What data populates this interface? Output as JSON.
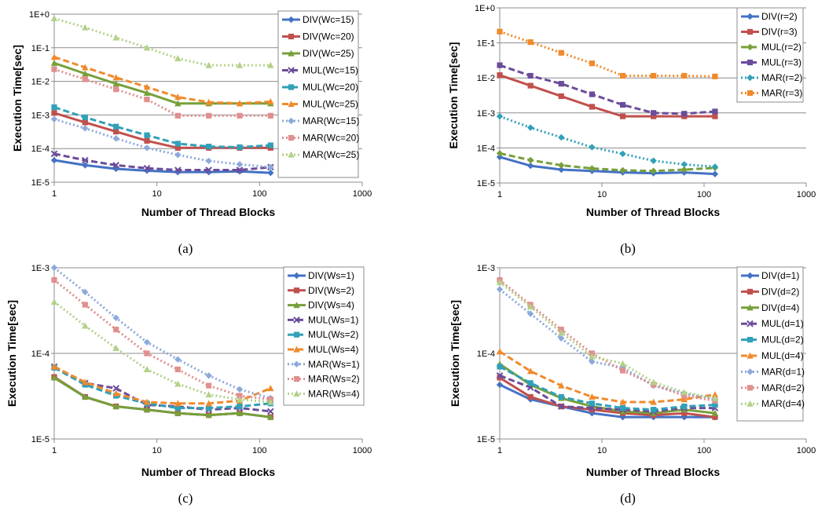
{
  "chart_data": [
    {
      "type": "line",
      "panel": "(a)",
      "xlabel": "Number of Thread Blocks",
      "ylabel": "Execution Time[sec]",
      "xscale": "log",
      "yscale": "log",
      "xlim": [
        1,
        1000
      ],
      "ylim": [
        1e-05,
        1
      ],
      "xticks": [
        1,
        10,
        100,
        1000
      ],
      "xtick_labels": [
        "1",
        "10",
        "100",
        "1000"
      ],
      "yticks": [
        1e-05,
        0.0001,
        0.001,
        0.01,
        0.1,
        1
      ],
      "ytick_labels": [
        "1E-5",
        "1E-4",
        "1E-3",
        "1E-2",
        "1E-1",
        "1E+0"
      ],
      "grid": "horizontal",
      "legend": "right",
      "x": [
        1,
        2,
        4,
        8,
        16,
        32,
        64,
        128
      ],
      "series": [
        {
          "name": "DIV(Wc=15)",
          "color": "#4472C4",
          "marker": "diamond",
          "dash": "solid",
          "values": [
            4.5e-05,
            3.2e-05,
            2.5e-05,
            2.2e-05,
            2e-05,
            2e-05,
            2.1e-05,
            1.9e-05
          ]
        },
        {
          "name": "DIV(Wc=20)",
          "color": "#C0504D",
          "marker": "square",
          "dash": "solid",
          "values": [
            0.00115,
            0.0006,
            0.00032,
            0.00017,
            0.000105,
            0.000105,
            0.000105,
            0.000105
          ]
        },
        {
          "name": "DIV(Wc=25)",
          "color": "#77A03A",
          "marker": "triangle",
          "dash": "solid",
          "values": [
            0.035,
            0.017,
            0.0085,
            0.0045,
            0.0022,
            0.0022,
            0.0022,
            0.0022
          ]
        },
        {
          "name": "MUL(Wc=15)",
          "color": "#6B4C9A",
          "marker": "x",
          "dash": "dash",
          "values": [
            7e-05,
            4.5e-05,
            3.2e-05,
            2.6e-05,
            2.3e-05,
            2.3e-05,
            2.3e-05,
            2.8e-05
          ]
        },
        {
          "name": "MUL(Wc=20)",
          "color": "#31A0B8",
          "marker": "square",
          "dash": "dash",
          "values": [
            0.0017,
            0.00085,
            0.00045,
            0.00025,
            0.00014,
            0.000115,
            0.00011,
            0.000125
          ]
        },
        {
          "name": "MUL(Wc=25)",
          "color": "#F08A2C",
          "marker": "triangle",
          "dash": "dash",
          "values": [
            0.053,
            0.026,
            0.013,
            0.0068,
            0.0034,
            0.0024,
            0.0022,
            0.0025
          ]
        },
        {
          "name": "MAR(Wc=15)",
          "color": "#8DA9DB",
          "marker": "diamond",
          "dash": "dot",
          "values": [
            0.00075,
            0.0004,
            0.0002,
            0.000105,
            6.5e-05,
            4.3e-05,
            3.4e-05,
            2.8e-05
          ]
        },
        {
          "name": "MAR(Wc=20)",
          "color": "#E0908F",
          "marker": "square",
          "dash": "dot",
          "values": [
            0.023,
            0.0115,
            0.0058,
            0.0029,
            0.00095,
            0.00095,
            0.00095,
            0.00095
          ]
        },
        {
          "name": "MAR(Wc=25)",
          "color": "#B3D18A",
          "marker": "triangle",
          "dash": "dot",
          "values": [
            0.75,
            0.4,
            0.2,
            0.1,
            0.048,
            0.03,
            0.03,
            0.03
          ]
        }
      ]
    },
    {
      "type": "line",
      "panel": "(b)",
      "xlabel": "Number of Thread Blocks",
      "ylabel": "Execution Time[sec]",
      "xscale": "log",
      "yscale": "log",
      "xlim": [
        1,
        1000
      ],
      "ylim": [
        1e-05,
        1
      ],
      "xticks": [
        1,
        10,
        100,
        1000
      ],
      "xtick_labels": [
        "1",
        "10",
        "100",
        "1000"
      ],
      "yticks": [
        1e-05,
        0.0001,
        0.001,
        0.01,
        0.1,
        1
      ],
      "ytick_labels": [
        "1E-5",
        "1E-4",
        "1E-3",
        "1E-2",
        "1E-1",
        "1E+0"
      ],
      "grid": "horizontal",
      "legend": "right",
      "x": [
        1,
        2,
        4,
        8,
        16,
        32,
        64,
        128
      ],
      "series": [
        {
          "name": "DIV(r=2)",
          "color": "#4472C4",
          "marker": "diamond",
          "dash": "solid",
          "values": [
            5.5e-05,
            3.1e-05,
            2.4e-05,
            2.2e-05,
            2e-05,
            1.9e-05,
            2e-05,
            1.8e-05
          ]
        },
        {
          "name": "DIV(r=3)",
          "color": "#C0504D",
          "marker": "square",
          "dash": "solid",
          "values": [
            0.012,
            0.006,
            0.003,
            0.0015,
            0.0008,
            0.0008,
            0.0008,
            0.0008
          ]
        },
        {
          "name": "MUL(r=2)",
          "color": "#77A03A",
          "marker": "diamond",
          "dash": "dash",
          "values": [
            7e-05,
            4.5e-05,
            3.2e-05,
            2.6e-05,
            2.3e-05,
            2.2e-05,
            2.4e-05,
            2.7e-05
          ]
        },
        {
          "name": "MUL(r=3)",
          "color": "#6B4C9A",
          "marker": "square",
          "dash": "dash",
          "values": [
            0.023,
            0.0115,
            0.0068,
            0.0034,
            0.0017,
            0.001,
            0.00095,
            0.0011
          ]
        },
        {
          "name": "MAR(r=2)",
          "color": "#31A0B8",
          "marker": "diamond",
          "dash": "dot",
          "values": [
            0.0008,
            0.00038,
            0.0002,
            0.000105,
            6.8e-05,
            4.3e-05,
            3.4e-05,
            2.9e-05
          ]
        },
        {
          "name": "MAR(r=3)",
          "color": "#F08A2C",
          "marker": "square",
          "dash": "dot",
          "values": [
            0.21,
            0.105,
            0.052,
            0.026,
            0.0115,
            0.0115,
            0.0115,
            0.011
          ]
        }
      ]
    },
    {
      "type": "line",
      "panel": "(c)",
      "xlabel": "Number of Thread Blocks",
      "ylabel": "Execution Time[sec]",
      "xscale": "log",
      "yscale": "log",
      "xlim": [
        1,
        1000
      ],
      "ylim": [
        1e-05,
        0.001
      ],
      "xticks": [
        1,
        10,
        100,
        1000
      ],
      "xtick_labels": [
        "1",
        "10",
        "100",
        "1000"
      ],
      "yticks": [
        1e-05,
        0.0001,
        0.001
      ],
      "ytick_labels": [
        "1E-5",
        "1E-4",
        "1E-3"
      ],
      "grid": "horizontal",
      "legend": "right",
      "x": [
        1,
        2,
        4,
        8,
        16,
        32,
        64,
        128
      ],
      "series": [
        {
          "name": "DIV(Ws=1)",
          "color": "#4472C4",
          "marker": "diamond",
          "dash": "solid",
          "values": [
            5.2e-05,
            3.1e-05,
            2.4e-05,
            2.2e-05,
            2e-05,
            1.9e-05,
            2e-05,
            1.8e-05
          ]
        },
        {
          "name": "DIV(Ws=2)",
          "color": "#C0504D",
          "marker": "square",
          "dash": "solid",
          "values": [
            5.3e-05,
            3.1e-05,
            2.4e-05,
            2.2e-05,
            2e-05,
            1.9e-05,
            2e-05,
            1.8e-05
          ]
        },
        {
          "name": "DIV(Ws=4)",
          "color": "#77A03A",
          "marker": "triangle",
          "dash": "solid",
          "values": [
            5.2e-05,
            3.1e-05,
            2.4e-05,
            2.2e-05,
            2e-05,
            1.9e-05,
            2e-05,
            1.8e-05
          ]
        },
        {
          "name": "MUL(Ws=1)",
          "color": "#6B4C9A",
          "marker": "x",
          "dash": "dash",
          "values": [
            7e-05,
            4.5e-05,
            3.9e-05,
            2.5e-05,
            2.4e-05,
            2.2e-05,
            2.3e-05,
            2.1e-05
          ]
        },
        {
          "name": "MUL(Ws=2)",
          "color": "#31A0B8",
          "marker": "square",
          "dash": "dash",
          "values": [
            6.8e-05,
            4.3e-05,
            3.2e-05,
            2.6e-05,
            2.3e-05,
            2.3e-05,
            2.4e-05,
            2.6e-05
          ]
        },
        {
          "name": "MUL(Ws=4)",
          "color": "#F08A2C",
          "marker": "triangle",
          "dash": "dash",
          "values": [
            7e-05,
            4.6e-05,
            3.4e-05,
            2.7e-05,
            2.6e-05,
            2.6e-05,
            2.8e-05,
            3.9e-05
          ]
        },
        {
          "name": "MAR(Ws=1)",
          "color": "#8DA9DB",
          "marker": "diamond",
          "dash": "dot",
          "values": [
            0.001,
            0.00052,
            0.00026,
            0.000135,
            8.5e-05,
            5.5e-05,
            3.8e-05,
            3e-05
          ]
        },
        {
          "name": "MAR(Ws=2)",
          "color": "#E0908F",
          "marker": "square",
          "dash": "dot",
          "values": [
            0.00072,
            0.00037,
            0.00019,
            0.0001,
            6.5e-05,
            4.2e-05,
            3.2e-05,
            2.9e-05
          ]
        },
        {
          "name": "MAR(Ws=4)",
          "color": "#B3D18A",
          "marker": "triangle",
          "dash": "dot",
          "values": [
            0.0004,
            0.00021,
            0.000115,
            6.5e-05,
            4.4e-05,
            3.3e-05,
            2.9e-05,
            2.7e-05
          ]
        }
      ]
    },
    {
      "type": "line",
      "panel": "(d)",
      "xlabel": "Number of Thread Blocks",
      "ylabel": "Execution Time[sec]",
      "xscale": "log",
      "yscale": "log",
      "xlim": [
        1,
        1000
      ],
      "ylim": [
        1e-05,
        0.001
      ],
      "xticks": [
        1,
        10,
        100,
        1000
      ],
      "xtick_labels": [
        "1",
        "10",
        "100",
        "1000"
      ],
      "yticks": [
        1e-05,
        0.0001,
        0.001
      ],
      "ytick_labels": [
        "1E-5",
        "1E-4",
        "1E-3"
      ],
      "grid": "horizontal",
      "legend": "right",
      "x": [
        1,
        2,
        4,
        8,
        16,
        32,
        64,
        128
      ],
      "series": [
        {
          "name": "DIV(d=1)",
          "color": "#4472C4",
          "marker": "diamond",
          "dash": "solid",
          "values": [
            4.3e-05,
            2.9e-05,
            2.4e-05,
            2e-05,
            1.8e-05,
            1.8e-05,
            1.8e-05,
            1.8e-05
          ]
        },
        {
          "name": "DIV(d=2)",
          "color": "#C0504D",
          "marker": "square",
          "dash": "solid",
          "values": [
            5.2e-05,
            3.1e-05,
            2.4e-05,
            2.2e-05,
            2e-05,
            1.9e-05,
            2e-05,
            1.8e-05
          ]
        },
        {
          "name": "DIV(d=4)",
          "color": "#77A03A",
          "marker": "triangle",
          "dash": "solid",
          "values": [
            7.5e-05,
            4.3e-05,
            3e-05,
            2.4e-05,
            2.1e-05,
            2e-05,
            2.2e-05,
            2e-05
          ]
        },
        {
          "name": "MUL(d=1)",
          "color": "#6B4C9A",
          "marker": "x",
          "dash": "dash",
          "values": [
            5.5e-05,
            4e-05,
            2.4e-05,
            2.3e-05,
            2.2e-05,
            2.1e-05,
            2.3e-05,
            2.3e-05
          ]
        },
        {
          "name": "MUL(d=2)",
          "color": "#31A0B8",
          "marker": "square",
          "dash": "dash",
          "values": [
            7e-05,
            4.5e-05,
            3.1e-05,
            2.6e-05,
            2.3e-05,
            2.2e-05,
            2.4e-05,
            2.5e-05
          ]
        },
        {
          "name": "MUL(d=4)",
          "color": "#F08A2C",
          "marker": "triangle",
          "dash": "dash",
          "values": [
            0.000105,
            6.2e-05,
            4.2e-05,
            3.1e-05,
            2.7e-05,
            2.7e-05,
            2.9e-05,
            3.3e-05
          ]
        },
        {
          "name": "MAR(d=1)",
          "color": "#8DA9DB",
          "marker": "diamond",
          "dash": "dot",
          "values": [
            0.00056,
            0.00029,
            0.00015,
            8e-05,
            6.8e-05,
            4.2e-05,
            3.4e-05,
            2.9e-05
          ]
        },
        {
          "name": "MAR(d=2)",
          "color": "#E0908F",
          "marker": "square",
          "dash": "dot",
          "values": [
            0.00072,
            0.00037,
            0.00019,
            0.0001,
            6.3e-05,
            4.3e-05,
            3.2e-05,
            2.8e-05
          ]
        },
        {
          "name": "MAR(d=4)",
          "color": "#B3D18A",
          "marker": "triangle",
          "dash": "dot",
          "values": [
            0.00068,
            0.00035,
            0.000175,
            9.2e-05,
            7.6e-05,
            4.6e-05,
            3.5e-05,
            3e-05
          ]
        }
      ]
    }
  ]
}
